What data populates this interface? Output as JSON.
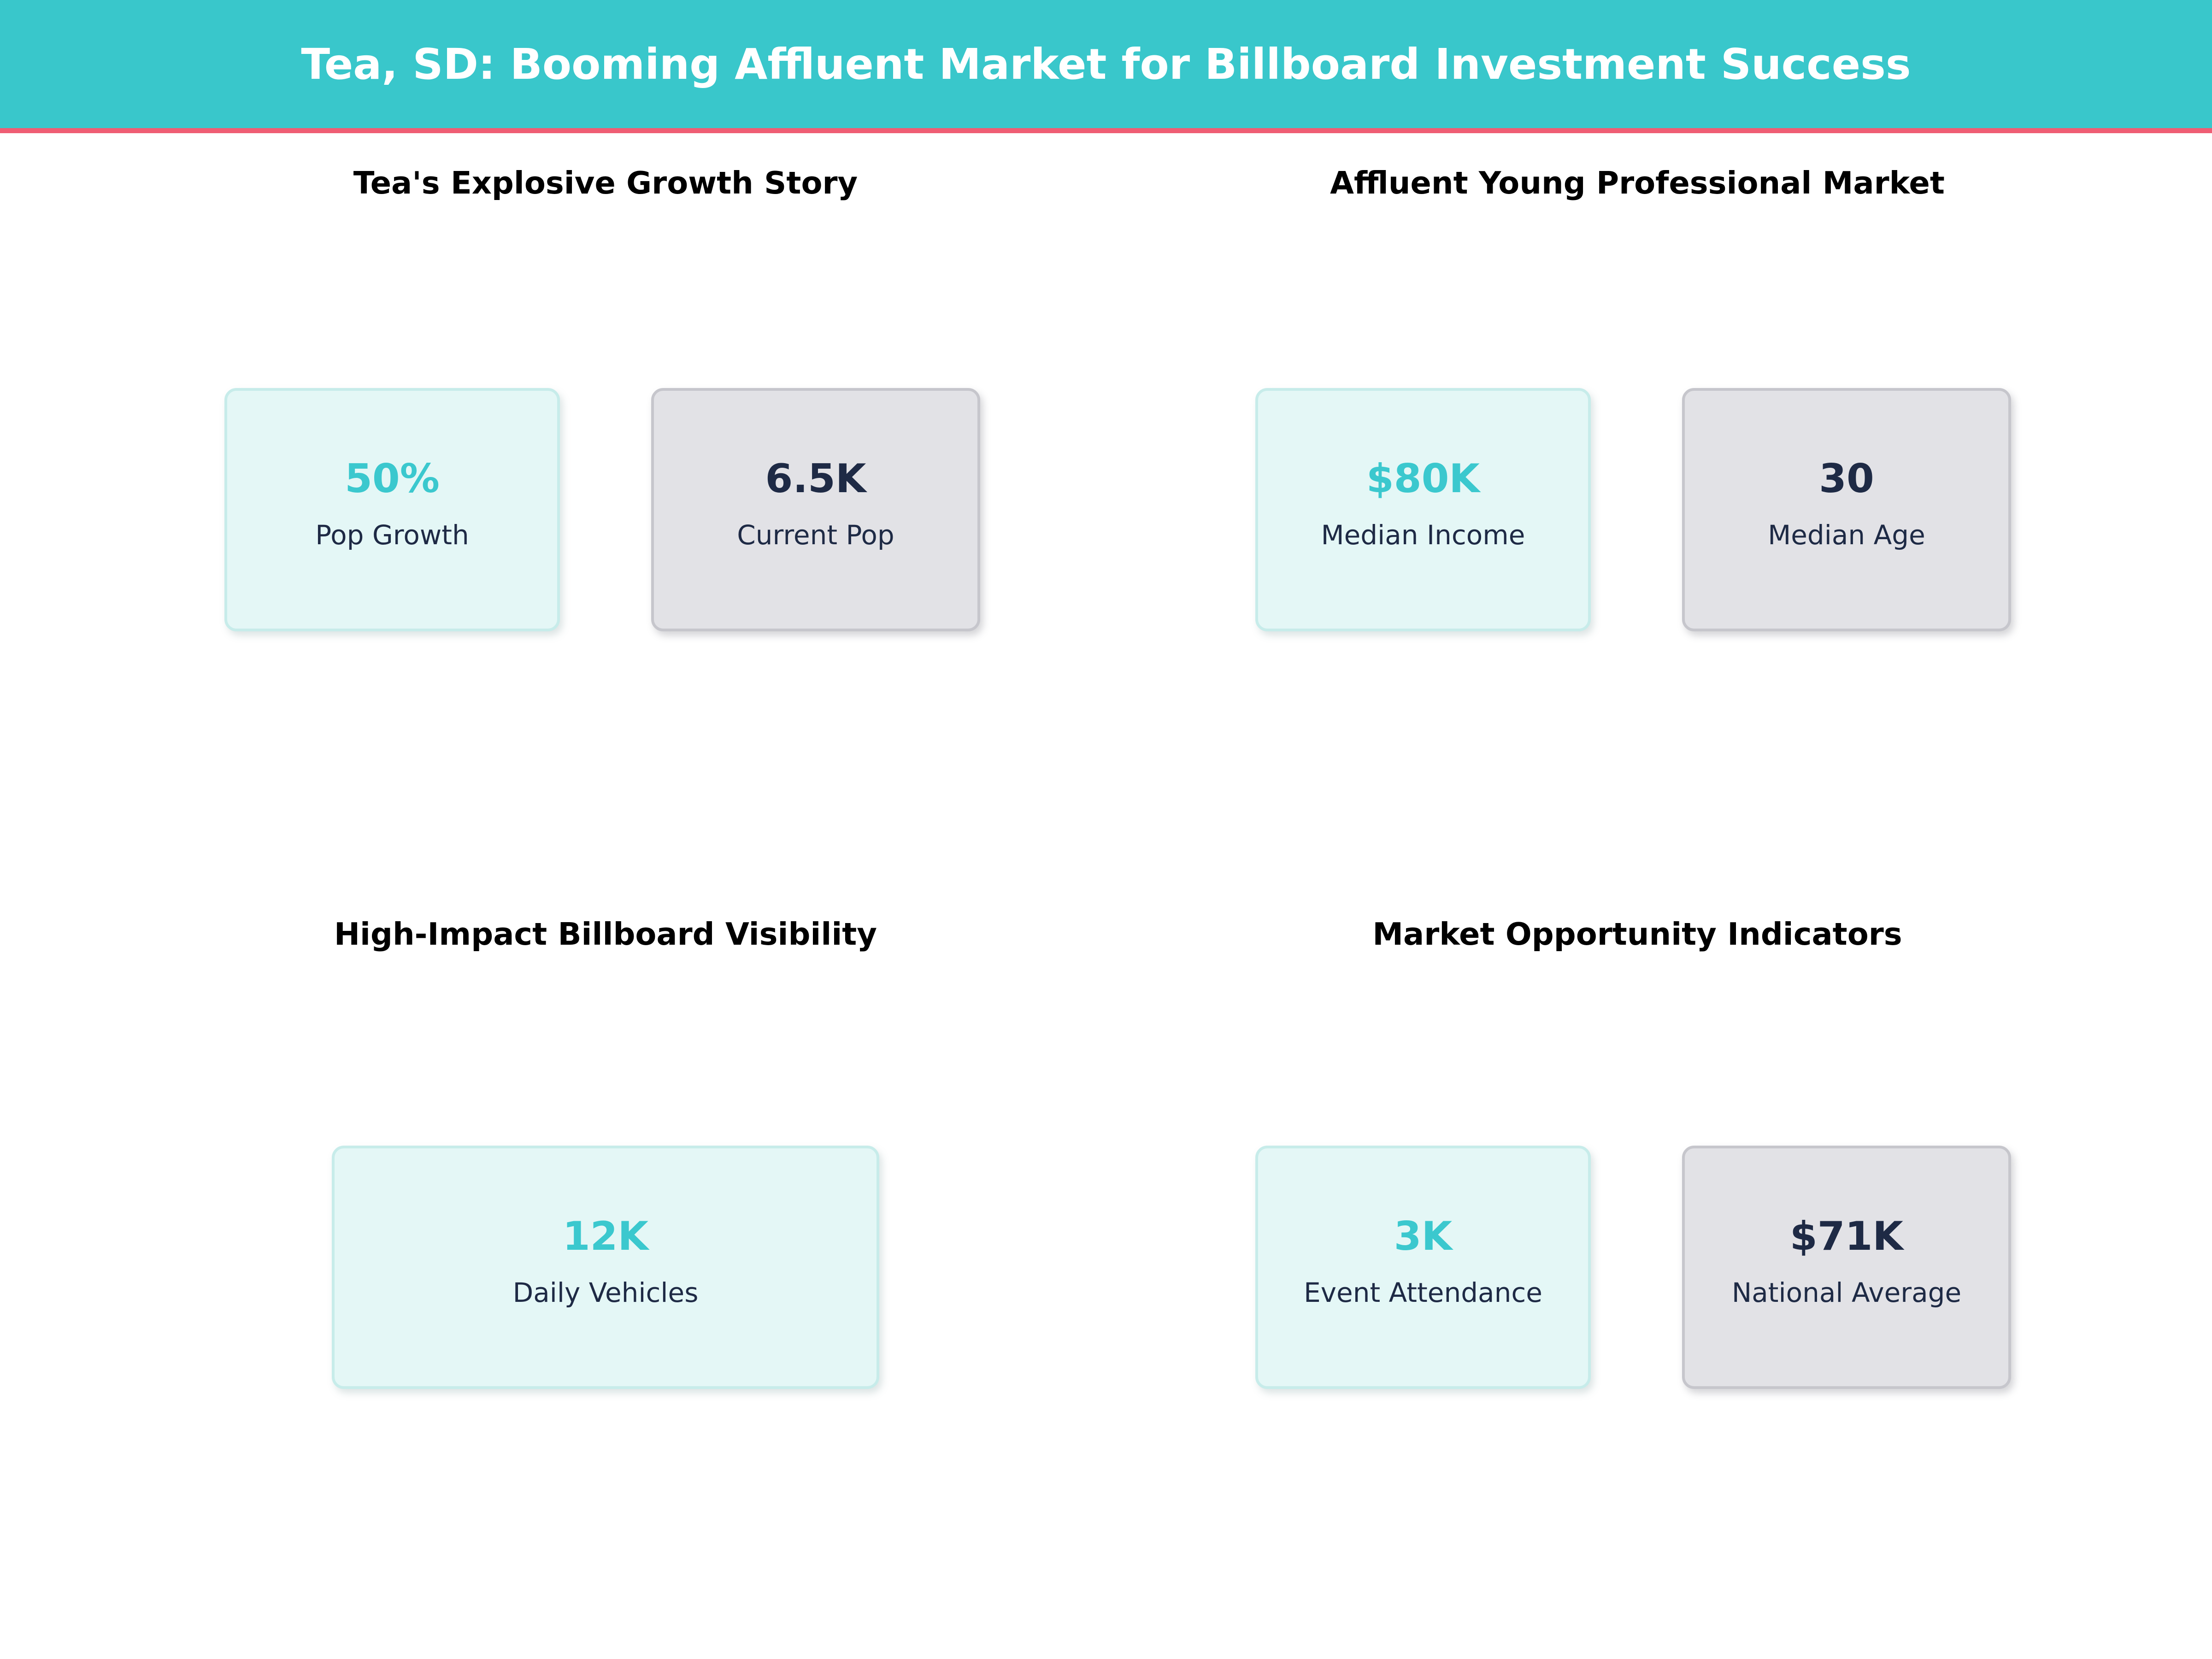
{
  "header": {
    "title": "Tea, SD: Booming Affluent Market for Billboard Investment Success"
  },
  "colors": {
    "header_bg": "#39C7CB",
    "accent_stripe": "#EF5D74",
    "header_text": "#FFFFFF",
    "section_title_text": "#000000",
    "card_teal_bg": "#E4F7F6",
    "card_teal_border": "#C7ECEA",
    "card_gray_bg": "#E2E2E6",
    "card_gray_border": "#C6C6CC",
    "value_teal": "#3BC8CE",
    "text_navy": "#1E2A45",
    "page_bg": "#FFFFFF"
  },
  "sections": [
    {
      "title": "Tea's Explosive Growth Story",
      "cards": [
        {
          "value": "50%",
          "label": "Pop Growth",
          "style": "teal"
        },
        {
          "value": "6.5K",
          "label": "Current Pop",
          "style": "gray"
        }
      ]
    },
    {
      "title": "Affluent Young Professional Market",
      "cards": [
        {
          "value": "$80K",
          "label": "Median Income",
          "style": "teal"
        },
        {
          "value": "30",
          "label": "Median Age",
          "style": "gray"
        }
      ]
    },
    {
      "title": "High-Impact Billboard Visibility",
      "cards": [
        {
          "value": "12K",
          "label": "Daily Vehicles",
          "style": "teal",
          "wide": true
        }
      ]
    },
    {
      "title": "Market Opportunity Indicators",
      "cards": [
        {
          "value": "3K",
          "label": "Event Attendance",
          "style": "teal"
        },
        {
          "value": "$71K",
          "label": "National Average",
          "style": "gray"
        }
      ]
    }
  ],
  "chart_data": {
    "type": "table",
    "title": "Tea, SD: Booming Affluent Market for Billboard Investment Success",
    "panels": [
      {
        "title": "Tea's Explosive Growth Story",
        "stats": [
          {
            "label": "Pop Growth",
            "value": "50%",
            "numeric": 50,
            "unit": "%"
          },
          {
            "label": "Current Pop",
            "value": "6.5K",
            "numeric": 6500,
            "unit": "people"
          }
        ]
      },
      {
        "title": "Affluent Young Professional Market",
        "stats": [
          {
            "label": "Median Income",
            "value": "$80K",
            "numeric": 80000,
            "unit": "USD"
          },
          {
            "label": "Median Age",
            "value": "30",
            "numeric": 30,
            "unit": "years"
          }
        ]
      },
      {
        "title": "High-Impact Billboard Visibility",
        "stats": [
          {
            "label": "Daily Vehicles",
            "value": "12K",
            "numeric": 12000,
            "unit": "vehicles/day"
          }
        ]
      },
      {
        "title": "Market Opportunity Indicators",
        "stats": [
          {
            "label": "Event Attendance",
            "value": "3K",
            "numeric": 3000,
            "unit": "people"
          },
          {
            "label": "National Average",
            "value": "$71K",
            "numeric": 71000,
            "unit": "USD"
          }
        ]
      }
    ],
    "layout": "2x2 grid of stat-card panels below a full-width banner",
    "highlight_rule": "teal cards emphasize local-market strengths; gray cards show reference figures"
  }
}
